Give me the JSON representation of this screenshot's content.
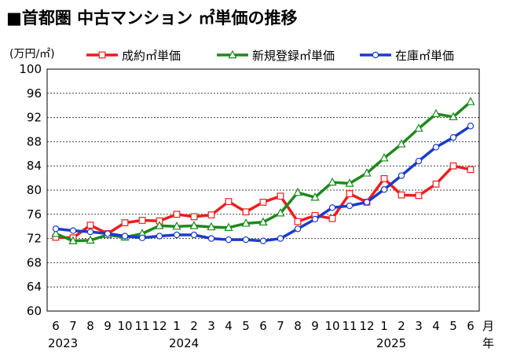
{
  "title": "■首都圏 中古マンション ㎡単価の推移",
  "chart_data": {
    "type": "line",
    "title": "■首都圏 中古マンション ㎡単価の推移",
    "ylabel": "(万円/㎡)",
    "xlabel": "月",
    "xlabel_year": "年",
    "ylim": [
      60,
      100
    ],
    "yticks": [
      60,
      64,
      68,
      72,
      76,
      80,
      84,
      88,
      92,
      96,
      100
    ],
    "categories": [
      "6",
      "7",
      "8",
      "9",
      "10",
      "11",
      "12",
      "1",
      "2",
      "3",
      "4",
      "5",
      "6",
      "7",
      "8",
      "9",
      "10",
      "11",
      "12",
      "1",
      "2",
      "3",
      "4",
      "5",
      "6"
    ],
    "year_labels": [
      {
        "label": "2023",
        "index": 0
      },
      {
        "label": "2024",
        "index": 7
      },
      {
        "label": "2025",
        "index": 19
      }
    ],
    "series": [
      {
        "name": "成約㎡単価",
        "color": "#ee1c1c",
        "marker": "square",
        "values": [
          72.2,
          72.1,
          74.2,
          72.8,
          74.6,
          75.0,
          74.9,
          76.0,
          75.6,
          75.9,
          78.1,
          76.4,
          78.0,
          79.0,
          74.8,
          75.8,
          75.3,
          79.4,
          78.0,
          81.9,
          79.2,
          79.1,
          81.0,
          84.0,
          83.4
        ]
      },
      {
        "name": "新規登録㎡単価",
        "color": "#1c8a1c",
        "marker": "triangle",
        "values": [
          72.8,
          71.6,
          71.7,
          72.6,
          72.2,
          72.8,
          74.1,
          74.0,
          74.1,
          73.9,
          73.8,
          74.5,
          74.7,
          76.2,
          79.6,
          78.8,
          81.3,
          81.1,
          82.8,
          85.3,
          87.6,
          90.2,
          92.6,
          92.1,
          94.6
        ]
      },
      {
        "name": "在庫㎡単価",
        "color": "#1c3cc8",
        "marker": "circle",
        "values": [
          73.6,
          73.3,
          73.1,
          72.8,
          72.4,
          72.1,
          72.4,
          72.6,
          72.6,
          72.0,
          71.8,
          71.8,
          71.6,
          72.0,
          73.6,
          75.2,
          77.1,
          77.4,
          78.0,
          80.1,
          82.4,
          84.8,
          87.1,
          88.7,
          90.6
        ]
      }
    ]
  }
}
